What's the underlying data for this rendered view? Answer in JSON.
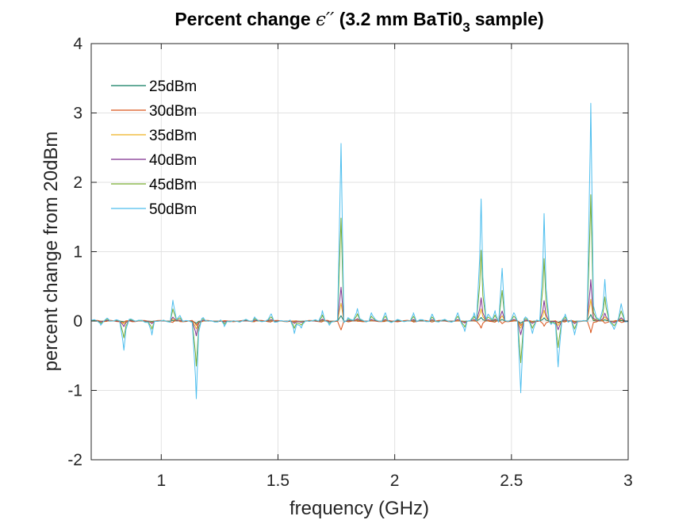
{
  "chart_data": {
    "type": "line",
    "title": "Percent change",
    "title_symbol": "ϵ′′",
    "title_tail": "(3.2 mm BaTi0",
    "title_subscript": "3",
    "title_end": "sample)",
    "xlabel": "frequency (GHz)",
    "ylabel": "percent change from 20dBm",
    "xlim": [
      0.7,
      3.0
    ],
    "ylim": [
      -2,
      4
    ],
    "xticks": [
      1,
      1.5,
      2,
      2.5,
      3
    ],
    "xtick_labels": [
      "1",
      "1.5",
      "2",
      "2.5",
      "3"
    ],
    "yticks": [
      -2,
      -1,
      0,
      1,
      2,
      3,
      4
    ],
    "ytick_labels": [
      "-2",
      "-1",
      "0",
      "1",
      "2",
      "3",
      "4"
    ],
    "grid": true,
    "legend_placement": "top-left",
    "series": [
      {
        "name": "25dBm",
        "color": "#0b7a5e",
        "scale": 0.03
      },
      {
        "name": "30dBm",
        "color": "#d95319",
        "scale": 0.06
      },
      {
        "name": "35dBm",
        "color": "#edb120",
        "scale": 0.1
      },
      {
        "name": "40dBm",
        "color": "#7e2f8e",
        "scale": 0.19
      },
      {
        "name": "45dBm",
        "color": "#77ac30",
        "scale": 0.58
      },
      {
        "name": "50dBm",
        "color": "#4dbeee",
        "scale": 1.0
      }
    ],
    "features_50dBm": [
      {
        "x": 0.74,
        "y": -0.04
      },
      {
        "x": 0.77,
        "y": 0.04
      },
      {
        "x": 0.84,
        "y": -0.42
      },
      {
        "x": 0.87,
        "y": 0.03
      },
      {
        "x": 0.96,
        "y": -0.2
      },
      {
        "x": 1.05,
        "y": 0.3
      },
      {
        "x": 1.08,
        "y": 0.08
      },
      {
        "x": 1.15,
        "y": -1.12
      },
      {
        "x": 1.18,
        "y": 0.05
      },
      {
        "x": 1.27,
        "y": -0.08
      },
      {
        "x": 1.4,
        "y": 0.06
      },
      {
        "x": 1.47,
        "y": 0.1
      },
      {
        "x": 1.57,
        "y": -0.18
      },
      {
        "x": 1.6,
        "y": -0.1
      },
      {
        "x": 1.69,
        "y": 0.15
      },
      {
        "x": 1.72,
        "y": -0.06
      },
      {
        "x": 1.77,
        "y": 2.56
      },
      {
        "x": 1.8,
        "y": 0.05
      },
      {
        "x": 1.84,
        "y": 0.18
      },
      {
        "x": 1.9,
        "y": 0.12
      },
      {
        "x": 1.96,
        "y": 0.12
      },
      {
        "x": 2.08,
        "y": 0.12
      },
      {
        "x": 2.16,
        "y": 0.1
      },
      {
        "x": 2.27,
        "y": 0.12
      },
      {
        "x": 2.3,
        "y": -0.15
      },
      {
        "x": 2.34,
        "y": 0.12
      },
      {
        "x": 2.37,
        "y": 1.76
      },
      {
        "x": 2.4,
        "y": 0.1
      },
      {
        "x": 2.43,
        "y": 0.15
      },
      {
        "x": 2.46,
        "y": 0.76
      },
      {
        "x": 2.51,
        "y": 0.12
      },
      {
        "x": 2.54,
        "y": -1.01
      },
      {
        "x": 2.56,
        "y": 0.06
      },
      {
        "x": 2.59,
        "y": -0.18
      },
      {
        "x": 2.64,
        "y": 1.55
      },
      {
        "x": 2.67,
        "y": -0.05
      },
      {
        "x": 2.7,
        "y": -0.66
      },
      {
        "x": 2.73,
        "y": 0.1
      },
      {
        "x": 2.77,
        "y": -0.2
      },
      {
        "x": 2.84,
        "y": 3.14
      },
      {
        "x": 2.87,
        "y": 0.04
      },
      {
        "x": 2.9,
        "y": 0.6
      },
      {
        "x": 2.94,
        "y": -0.12
      },
      {
        "x": 2.97,
        "y": 0.25
      }
    ]
  }
}
